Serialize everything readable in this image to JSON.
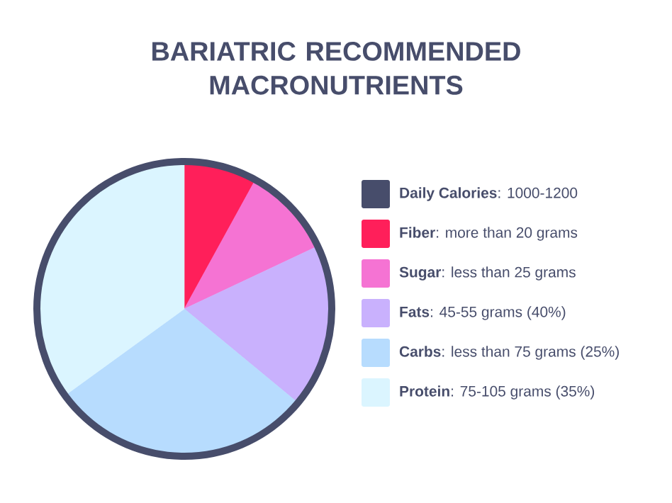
{
  "chart_data": {
    "type": "pie",
    "title": "BARIATRIC RECOMMENDED MACRONUTRIENTS",
    "categories": [
      "**Daily Calories**: 1000-1200",
      "**Fiber**: more than 20 grams",
      "**Sugar**: less than 25 grams",
      "**Fats**: 45-55 grams (40%)",
      "**Carbs**: less than 75 grams (25%)",
      "**Protein**: 75-105 grams (35%)"
    ],
    "values": [
      0,
      8,
      10,
      18,
      29,
      35
    ],
    "colors": [
      "#474d6b",
      "#ff1f5a",
      "#f573d3",
      "#c9b1fd",
      "#b7dcfe",
      "#dbf5ff"
    ],
    "legend": "right"
  }
}
